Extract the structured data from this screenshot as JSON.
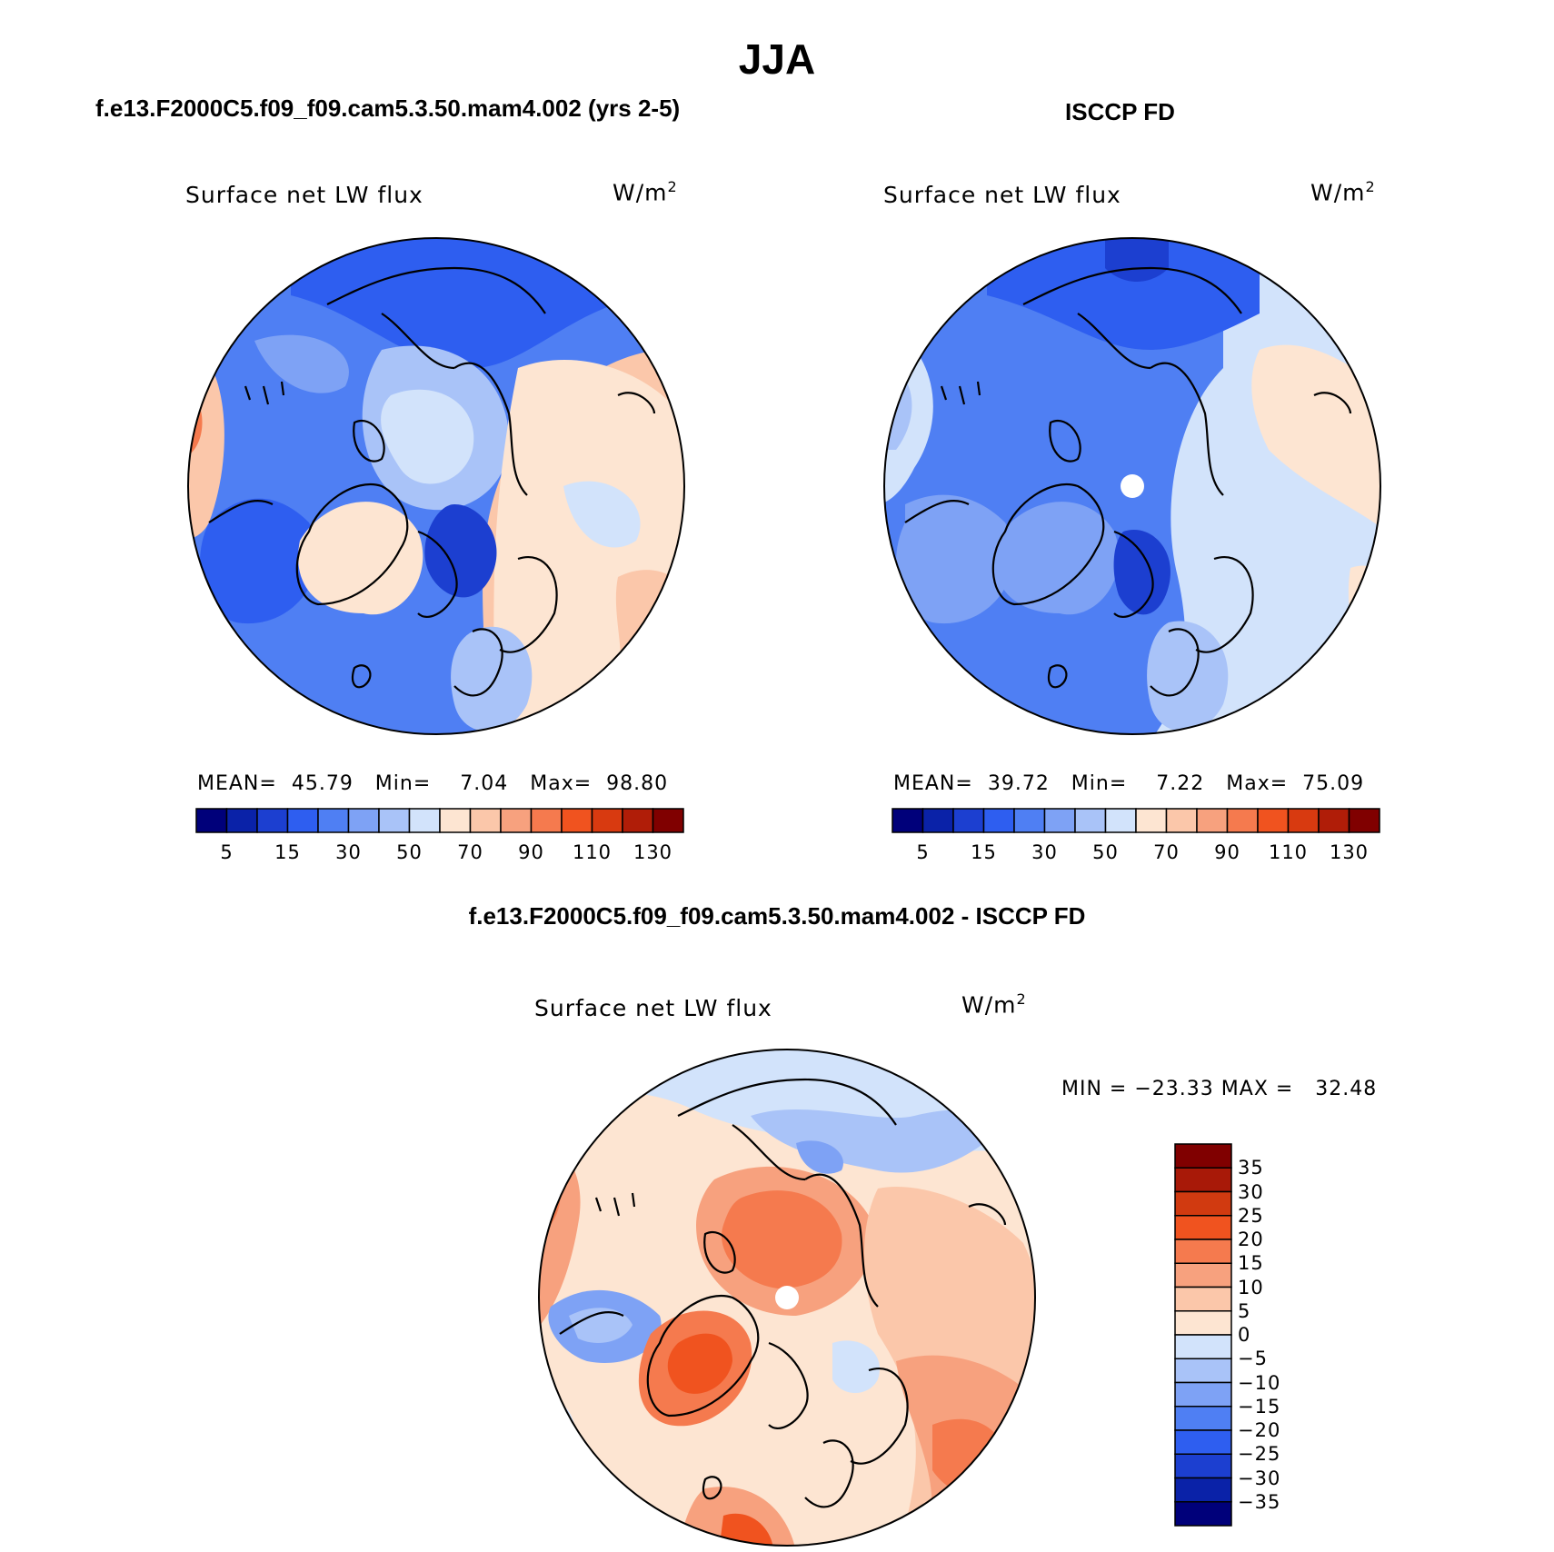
{
  "title": "JJA",
  "model_case_title": "f.e13.F2000C5.f09_f09.cam5.3.50.mam4.002 (yrs 2-5)",
  "obs_title": "ISCCP FD",
  "diff_title": "f.e13.F2000C5.f09_f09.cam5.3.50.mam4.002 - ISCCP FD",
  "panels": {
    "model": {
      "variable": "Surface net LW flux",
      "units": "W/m",
      "units_sup": "2",
      "stats": {
        "mean_label": "MEAN=",
        "mean": "45.79",
        "min_label": "Min=",
        "min": "7.04",
        "max_label": "Max=",
        "max": "98.80"
      }
    },
    "obs": {
      "variable": "Surface net LW flux",
      "units": "W/m",
      "units_sup": "2",
      "stats": {
        "mean_label": "MEAN=",
        "mean": "39.72",
        "min_label": "Min=",
        "min": "7.22",
        "max_label": "Max=",
        "max": "75.09"
      }
    },
    "diff": {
      "variable": "Surface net LW flux",
      "units": "W/m",
      "units_sup": "2",
      "stats": {
        "min_label": "MIN =",
        "min": "−23.33",
        "max_label": "MAX =",
        "max": "32.48"
      }
    }
  },
  "colorbar_main": {
    "colors": [
      "#00007a",
      "#0a22a8",
      "#1c3fd0",
      "#2e5ef0",
      "#4f7ff3",
      "#7ea2f5",
      "#a9c3f8",
      "#d2e3fb",
      "#fde5d2",
      "#fbc7aa",
      "#f7a17e",
      "#f57a4e",
      "#f0531f",
      "#d83a10",
      "#b01d08",
      "#800000"
    ],
    "labels": [
      "5",
      "15",
      "30",
      "50",
      "70",
      "90",
      "110",
      "130"
    ]
  },
  "colorbar_diff": {
    "colors": [
      "#800000",
      "#a81908",
      "#d13a10",
      "#f0531f",
      "#f57a4e",
      "#f7a17e",
      "#fbc7aa",
      "#fde5d2",
      "#d2e3fb",
      "#a9c3f8",
      "#7ea2f5",
      "#4f7ff3",
      "#2e5ef0",
      "#1c3fd0",
      "#0a22a8",
      "#00007a"
    ],
    "labels": [
      "35",
      "30",
      "25",
      "20",
      "15",
      "10",
      "5",
      "0",
      "−5",
      "−10",
      "−15",
      "−20",
      "−25",
      "−30",
      "−35"
    ]
  }
}
